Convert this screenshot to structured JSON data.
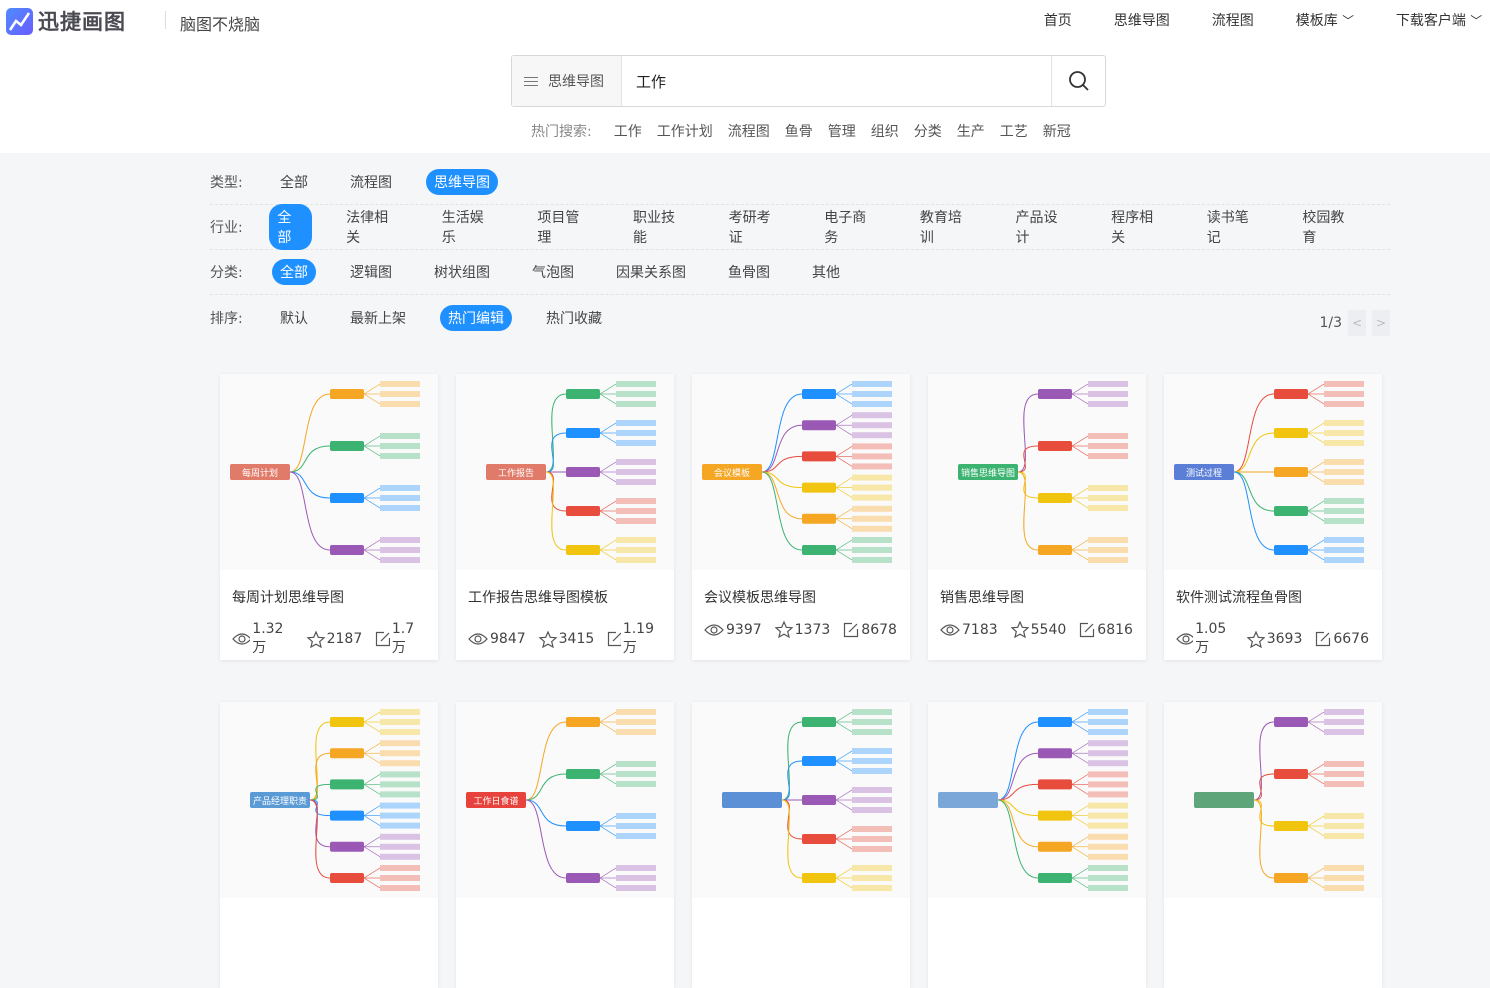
{
  "brand": {
    "name": "迅捷画图",
    "slogan": "脑图不烧脑"
  },
  "nav": [
    "首页",
    "思维导图",
    "流程图",
    "模板库",
    "下载客户端"
  ],
  "search": {
    "type": "思维导图",
    "value": "工作"
  },
  "hot": {
    "label": "热门搜索:",
    "keywords": [
      "工作",
      "工作计划",
      "流程图",
      "鱼骨",
      "管理",
      "组织",
      "分类",
      "生产",
      "工艺",
      "新冠"
    ]
  },
  "filters": [
    {
      "label": "类型:",
      "items": [
        "全部",
        "流程图",
        "思维导图"
      ],
      "active": 2
    },
    {
      "label": "行业:",
      "items": [
        "全部",
        "法律相关",
        "生活娱乐",
        "项目管理",
        "职业技能",
        "考研考证",
        "电子商务",
        "教育培训",
        "产品设计",
        "程序相关",
        "读书笔记",
        "校园教育"
      ],
      "active": 0
    },
    {
      "label": "分类:",
      "items": [
        "全部",
        "逻辑图",
        "树状组图",
        "气泡图",
        "因果关系图",
        "鱼骨图",
        "其他"
      ],
      "active": 0
    },
    {
      "label": "排序:",
      "items": [
        "默认",
        "最新上架",
        "热门编辑",
        "热门收藏"
      ],
      "active": 2
    }
  ],
  "pager": "1/3",
  "colors": {
    "accent": "#1e90ff"
  },
  "cards": [
    {
      "title": "每周计划思维导图",
      "views": "1.32万",
      "stars": "2187",
      "edits": "1.7万",
      "center": "每周计划",
      "color": "#e07b6a"
    },
    {
      "title": "工作报告思维导图模板",
      "views": "9847",
      "stars": "3415",
      "edits": "1.19万",
      "center": "工作报告",
      "color": "#e07b6a"
    },
    {
      "title": "会议模板思维导图",
      "views": "9397",
      "stars": "1373",
      "edits": "8678",
      "center": "会议模板",
      "color": "#f5a623"
    },
    {
      "title": "销售思维导图",
      "views": "7183",
      "stars": "5540",
      "edits": "6816",
      "center": "销售思维导图",
      "color": "#3cb371"
    },
    {
      "title": "软件测试流程鱼骨图",
      "views": "1.05万",
      "stars": "3693",
      "edits": "6676",
      "center": "测试过程",
      "color": "#5b7fd6"
    },
    {
      "center": "产品经理职责",
      "color": "#5b9bd5"
    },
    {
      "center": "工作日食谱",
      "color": "#e8423c"
    },
    {
      "center": "",
      "color": "#5b8fd6"
    },
    {
      "center": "",
      "color": "#7aa6d8"
    },
    {
      "center": "",
      "color": "#5ea67a"
    }
  ]
}
